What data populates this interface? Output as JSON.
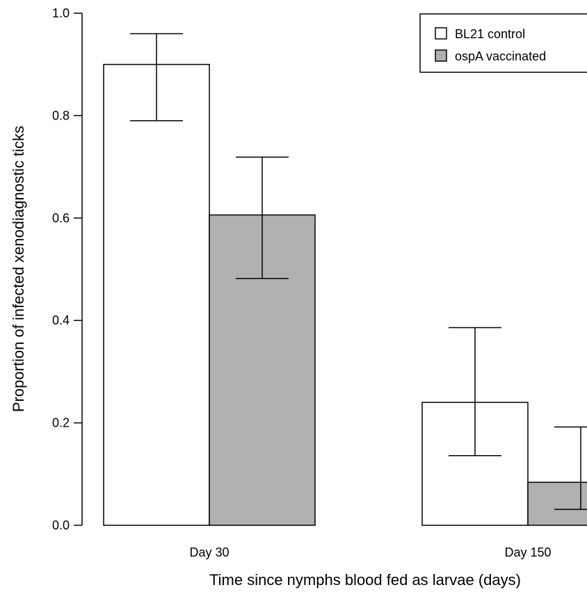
{
  "chart_data": {
    "type": "bar",
    "xlabel": "Time since nymphs blood fed as larvae (days)",
    "ylabel": "Proportion of infected xenodiagnostic ticks",
    "ylim": [
      0,
      1
    ],
    "yticks": [
      "0.0",
      "0.2",
      "0.4",
      "0.6",
      "0.8",
      "1.0"
    ],
    "categories": [
      "Day 30",
      "Day 150"
    ],
    "series": [
      {
        "name": "BL21 control",
        "color": "#ffffff",
        "values": [
          0.9,
          0.24
        ],
        "err_low": [
          0.79,
          0.136
        ],
        "err_high": [
          0.96,
          0.386
        ]
      },
      {
        "name": "ospA vaccinated",
        "color": "#b0b0b0",
        "values": [
          0.606,
          0.084
        ],
        "err_low": [
          0.482,
          0.031
        ],
        "err_high": [
          0.719,
          0.192
        ]
      }
    ],
    "legend_position": "top-right",
    "grid": false
  }
}
